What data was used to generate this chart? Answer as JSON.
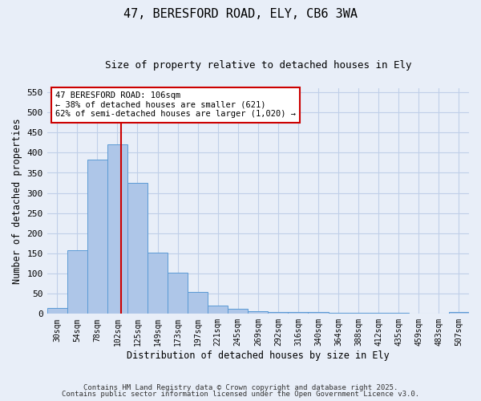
{
  "title_line1": "47, BERESFORD ROAD, ELY, CB6 3WA",
  "title_line2": "Size of property relative to detached houses in Ely",
  "xlabel": "Distribution of detached houses by size in Ely",
  "ylabel": "Number of detached properties",
  "bin_labels": [
    "30sqm",
    "54sqm",
    "78sqm",
    "102sqm",
    "125sqm",
    "149sqm",
    "173sqm",
    "197sqm",
    "221sqm",
    "245sqm",
    "269sqm",
    "292sqm",
    "316sqm",
    "340sqm",
    "364sqm",
    "388sqm",
    "412sqm",
    "435sqm",
    "459sqm",
    "483sqm",
    "507sqm"
  ],
  "bar_heights": [
    14,
    157,
    383,
    421,
    325,
    152,
    103,
    55,
    20,
    12,
    6,
    4,
    4,
    4,
    3,
    2,
    2,
    2,
    1,
    1,
    4
  ],
  "bar_color": "#aec6e8",
  "bar_edge_color": "#5b9bd5",
  "property_line_x": 3.17,
  "property_line_color": "#cc0000",
  "annotation_text": "47 BERESFORD ROAD: 106sqm\n← 38% of detached houses are smaller (621)\n62% of semi-detached houses are larger (1,020) →",
  "annotation_box_color": "#ffffff",
  "annotation_border_color": "#cc0000",
  "ylim": [
    0,
    560
  ],
  "yticks": [
    0,
    50,
    100,
    150,
    200,
    250,
    300,
    350,
    400,
    450,
    500,
    550
  ],
  "footer_line1": "Contains HM Land Registry data © Crown copyright and database right 2025.",
  "footer_line2": "Contains public sector information licensed under the Open Government Licence v3.0.",
  "background_color": "#e8eef8",
  "grid_color": "#c0cfe8"
}
